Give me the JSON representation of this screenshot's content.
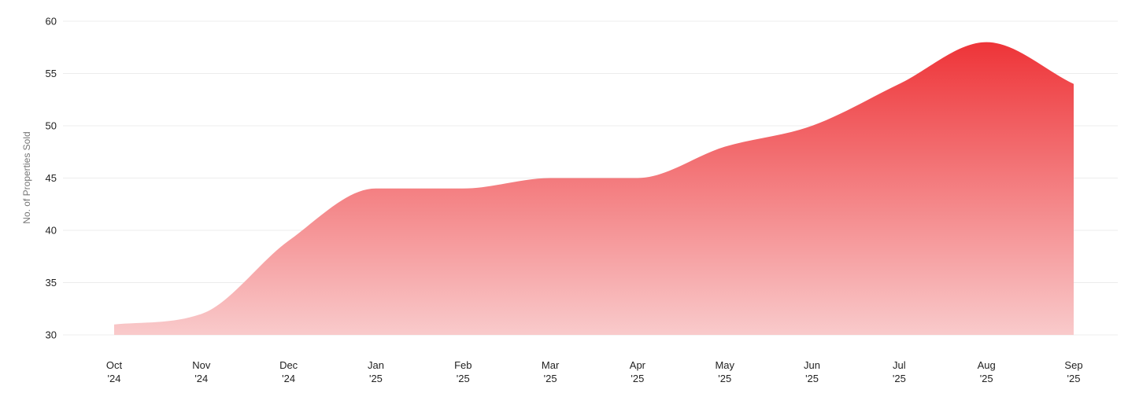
{
  "chart_data": {
    "type": "area",
    "title": "",
    "xlabel": "",
    "ylabel": "No. of Properties Sold",
    "ylim": [
      30,
      60
    ],
    "yticks": [
      30,
      35,
      40,
      45,
      50,
      55,
      60
    ],
    "grid": true,
    "legend": "none",
    "categories": [
      {
        "month": "Oct",
        "year": "'24"
      },
      {
        "month": "Nov",
        "year": "'24"
      },
      {
        "month": "Dec",
        "year": "'24"
      },
      {
        "month": "Jan",
        "year": "'25"
      },
      {
        "month": "Feb",
        "year": "'25"
      },
      {
        "month": "Mar",
        "year": "'25"
      },
      {
        "month": "Apr",
        "year": "'25"
      },
      {
        "month": "May",
        "year": "'25"
      },
      {
        "month": "Jun",
        "year": "'25"
      },
      {
        "month": "Jul",
        "year": "'25"
      },
      {
        "month": "Aug",
        "year": "'25"
      },
      {
        "month": "Sep",
        "year": "'25"
      }
    ],
    "series": [
      {
        "values": [
          31,
          32,
          39,
          44,
          44,
          45,
          45,
          48,
          50,
          54,
          58,
          54
        ]
      }
    ],
    "colors": {
      "fill_top": "#ee3438",
      "fill_bottom": "#f9cacb",
      "grid": "#ececec"
    }
  }
}
